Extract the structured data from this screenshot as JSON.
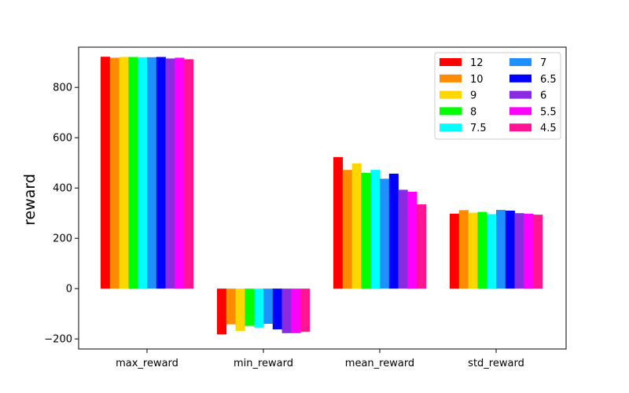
{
  "chart_data": {
    "type": "bar",
    "xlabel": "",
    "ylabel": "reward",
    "ylim": [
      -240,
      960
    ],
    "yticks": [
      -200,
      0,
      200,
      400,
      600,
      800
    ],
    "categories": [
      "max_reward",
      "min_reward",
      "mean_reward",
      "std_reward"
    ],
    "legend_position": "top-right",
    "grid": false,
    "series": [
      {
        "name": "12",
        "color": "#ff0000",
        "values": [
          922,
          -182,
          523,
          298
        ]
      },
      {
        "name": "10",
        "color": "#ff8c00",
        "values": [
          918,
          -142,
          472,
          312
        ]
      },
      {
        "name": "9",
        "color": "#ffd700",
        "values": [
          921,
          -168,
          498,
          302
        ]
      },
      {
        "name": "8",
        "color": "#00ff00",
        "values": [
          921,
          -148,
          460,
          305
        ]
      },
      {
        "name": "7.5",
        "color": "#00ffff",
        "values": [
          920,
          -155,
          472,
          296
        ]
      },
      {
        "name": "7",
        "color": "#1e90ff",
        "values": [
          920,
          -140,
          437,
          313
        ]
      },
      {
        "name": "6.5",
        "color": "#0000ff",
        "values": [
          921,
          -162,
          457,
          310
        ]
      },
      {
        "name": "6",
        "color": "#8a2be2",
        "values": [
          915,
          -177,
          393,
          300
        ]
      },
      {
        "name": "5.5",
        "color": "#ff00ff",
        "values": [
          918,
          -177,
          385,
          298
        ]
      },
      {
        "name": "4.5",
        "color": "#ff1493",
        "values": [
          912,
          -172,
          335,
          294
        ]
      }
    ]
  }
}
